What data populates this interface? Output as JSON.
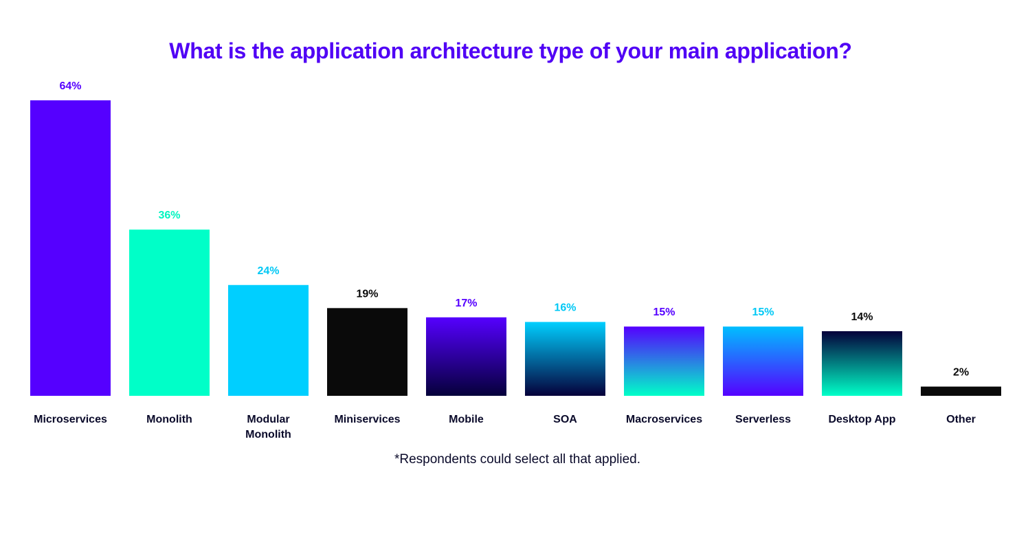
{
  "chart_data": {
    "type": "bar",
    "title": "What is the application architecture type of your main application?",
    "footnote": "*Respondents could select all that applied.",
    "xlabel": "",
    "ylabel": "",
    "ylim": [
      0,
      64
    ],
    "grid": false,
    "categories": [
      "Microservices",
      "Monolith",
      "Modular Monolith",
      "Miniservices",
      "Mobile",
      "SOA",
      "Macroservices",
      "Serverless",
      "Desktop App",
      "Other"
    ],
    "category_lines": [
      [
        "Microservices"
      ],
      [
        "Monolith"
      ],
      [
        "Modular",
        "Monolith"
      ],
      [
        "Miniservices"
      ],
      [
        "Mobile"
      ],
      [
        "SOA"
      ],
      [
        "Macroservices"
      ],
      [
        "Serverless"
      ],
      [
        "Desktop App"
      ],
      [
        "Other"
      ]
    ],
    "values": [
      64,
      36,
      24,
      19,
      17,
      16,
      15,
      15,
      14,
      2
    ],
    "value_labels": [
      "64%",
      "36%",
      "24%",
      "19%",
      "17%",
      "16%",
      "15%",
      "15%",
      "14%",
      "2%"
    ],
    "bar_colors": [
      [
        "#5500FF",
        "#5500FF"
      ],
      [
        "#00FFC8",
        "#00FFC8"
      ],
      [
        "#00CFFF",
        "#00CFFF"
      ],
      [
        "#0A0A0A",
        "#0A0A0A"
      ],
      [
        "#5500FF",
        "#05003A"
      ],
      [
        "#00CFFF",
        "#05003A"
      ],
      [
        "#5500FF",
        "#00FFC8"
      ],
      [
        "#00BFFF",
        "#5500FF"
      ],
      [
        "#05003A",
        "#00FFC8"
      ],
      [
        "#0A0A0A",
        "#0A0A0A"
      ]
    ],
    "label_colors": [
      "#5500FF",
      "#00F5C0",
      "#00C8F5",
      "#0A0A0A",
      "#5500FF",
      "#00C8F5",
      "#5500FF",
      "#00C8F5",
      "#0A0A0A",
      "#0A0A0A"
    ]
  }
}
